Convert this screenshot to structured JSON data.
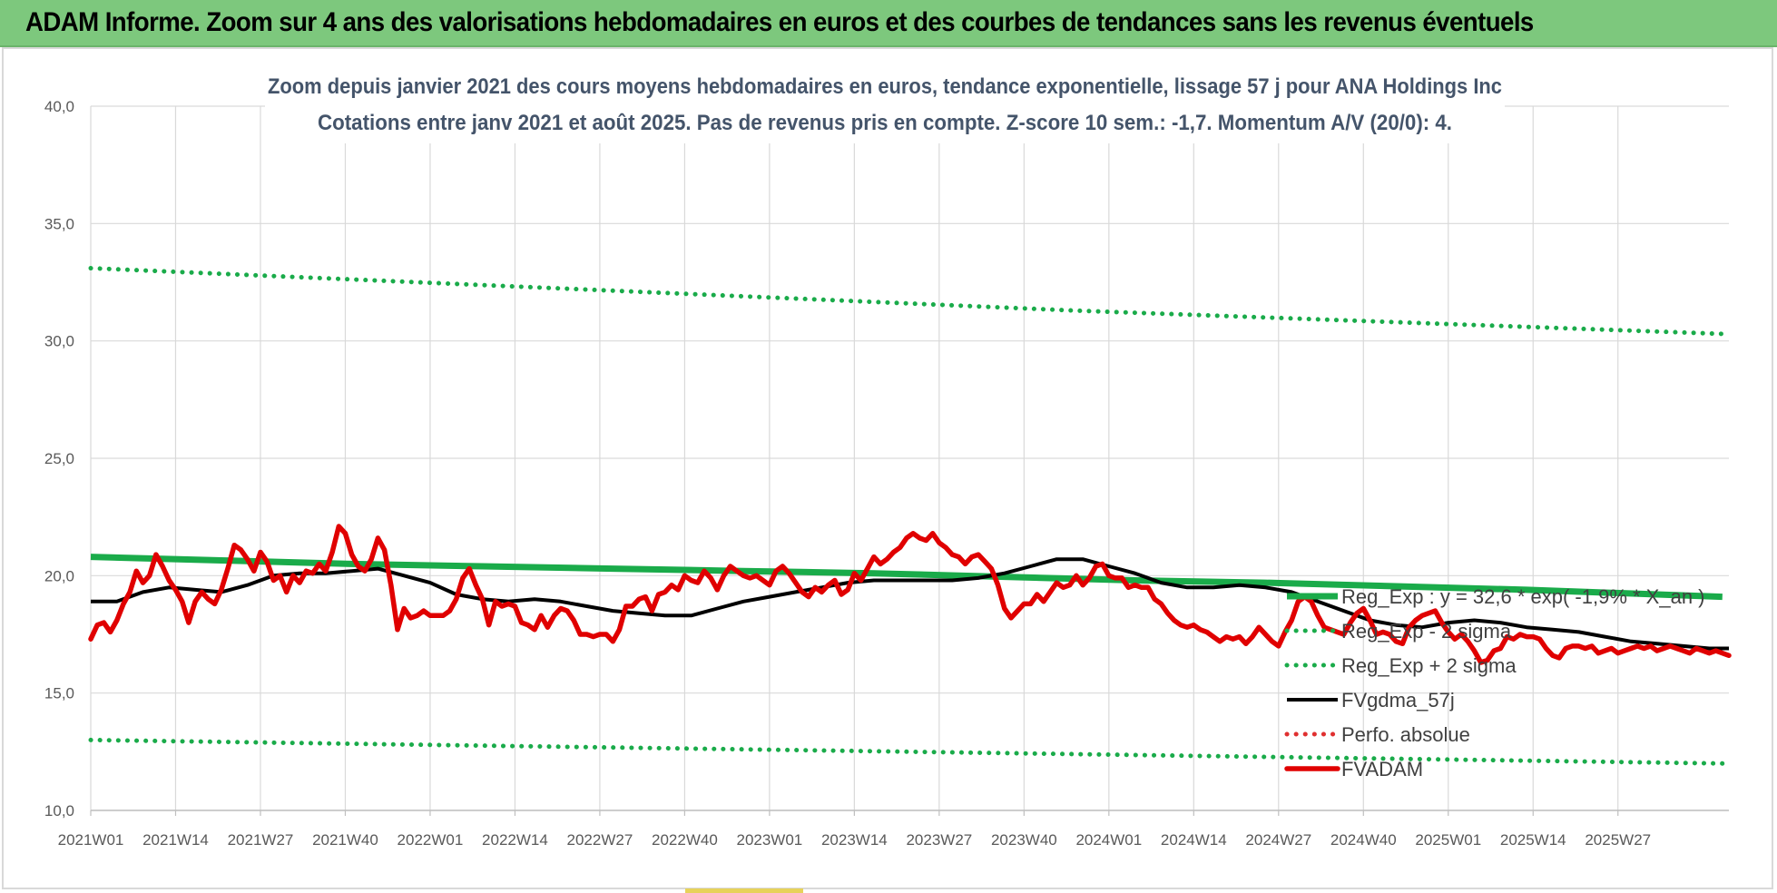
{
  "banner": {
    "title": "ADAM Informe. Zoom sur 4 ans des valorisations hebdomadaires en euros et des courbes de tendances sans les revenus éventuels"
  },
  "chart_data": {
    "type": "line",
    "title_line1": "Zoom depuis janvier 2021 des cours moyens hebdomadaires en euros, tendance exponentielle, lissage 57 j pour ANA Holdings Inc",
    "title_line2": "Cotations entre janv 2021 et août 2025.  Pas de revenus pris en compte. Z-score 10 sem.: -1,7. Momentum A/V (20/0): 4.",
    "ylim": [
      10,
      40
    ],
    "y_ticks": [
      "10,0",
      "15,0",
      "20,0",
      "25,0",
      "30,0",
      "35,0",
      "40,0"
    ],
    "x_tick_labels": [
      "2021W01",
      "2021W14",
      "2021W27",
      "2021W40",
      "2022W01",
      "2022W14",
      "2022W27",
      "2022W40",
      "2023W01",
      "2023W14",
      "2023W27",
      "2023W40",
      "2024W01",
      "2024W14",
      "2024W27",
      "2024W40",
      "2025W01",
      "2025W14",
      "2025W27"
    ],
    "grid": true,
    "legend_position": "right",
    "series": [
      {
        "name": "Reg_Exp : y = 32,6 * exp( -1,9% * X_an )",
        "style": "solid",
        "color": "#1aab4a",
        "x": [
          0,
          20,
          40,
          60,
          80,
          100,
          120,
          140,
          160,
          180,
          200,
          220,
          240,
          250
        ],
        "values": [
          20.8,
          20.65,
          20.5,
          20.4,
          20.3,
          20.2,
          20.1,
          19.95,
          19.8,
          19.7,
          19.55,
          19.4,
          19.2,
          19.1
        ]
      },
      {
        "name": "Reg_Exp - 2 sigma",
        "style": "dotted",
        "color": "#1aab4a",
        "x": [
          0,
          50,
          100,
          150,
          200,
          250
        ],
        "values": [
          13.0,
          12.8,
          12.6,
          12.4,
          12.2,
          12.0
        ]
      },
      {
        "name": "Reg_Exp + 2 sigma",
        "style": "dotted",
        "color": "#1aab4a",
        "x": [
          0,
          50,
          100,
          150,
          200,
          250
        ],
        "values": [
          33.1,
          32.5,
          31.9,
          31.3,
          30.8,
          30.3
        ]
      },
      {
        "name": "FVgdma_57j",
        "style": "solid",
        "color": "#000000",
        "x": [
          0,
          4,
          8,
          12,
          16,
          20,
          24,
          28,
          32,
          36,
          40,
          44,
          48,
          52,
          56,
          60,
          64,
          68,
          72,
          76,
          80,
          84,
          88,
          92,
          96,
          100,
          104,
          108,
          112,
          116,
          120,
          124,
          128,
          132,
          136,
          140,
          144,
          148,
          152,
          156,
          160,
          164,
          168,
          172,
          176,
          180,
          184,
          188,
          192,
          196,
          200,
          204,
          208,
          212,
          216,
          220,
          224,
          228,
          232,
          236,
          240,
          244,
          248,
          251
        ],
        "values": [
          18.9,
          18.9,
          19.3,
          19.5,
          19.4,
          19.3,
          19.6,
          20.0,
          20.1,
          20.1,
          20.2,
          20.3,
          20.0,
          19.7,
          19.2,
          19.0,
          18.9,
          19.0,
          18.9,
          18.7,
          18.5,
          18.4,
          18.3,
          18.3,
          18.6,
          18.9,
          19.1,
          19.3,
          19.5,
          19.7,
          19.8,
          19.8,
          19.8,
          19.8,
          19.9,
          20.1,
          20.4,
          20.7,
          20.7,
          20.4,
          20.1,
          19.7,
          19.5,
          19.5,
          19.6,
          19.5,
          19.3,
          18.9,
          18.5,
          18.1,
          17.9,
          17.8,
          18.0,
          18.1,
          18.0,
          17.8,
          17.7,
          17.6,
          17.4,
          17.2,
          17.1,
          17.0,
          16.9,
          16.9
        ]
      },
      {
        "name": "Perfo. absolue",
        "style": "dotted",
        "color": "#e03030",
        "x": [],
        "values": []
      },
      {
        "name": "FVADAM",
        "style": "solid",
        "color": "#e00000",
        "x": [
          0,
          1,
          2,
          3,
          4,
          5,
          6,
          7,
          8,
          9,
          10,
          11,
          12,
          13,
          14,
          15,
          16,
          17,
          18,
          19,
          20,
          21,
          22,
          23,
          24,
          25,
          26,
          27,
          28,
          29,
          30,
          31,
          32,
          33,
          34,
          35,
          36,
          37,
          38,
          39,
          40,
          41,
          42,
          43,
          44,
          45,
          46,
          47,
          48,
          49,
          50,
          51,
          52,
          53,
          54,
          55,
          56,
          57,
          58,
          59,
          60,
          61,
          62,
          63,
          64,
          65,
          66,
          67,
          68,
          69,
          70,
          71,
          72,
          73,
          74,
          75,
          76,
          77,
          78,
          79,
          80,
          81,
          82,
          83,
          84,
          85,
          86,
          87,
          88,
          89,
          90,
          91,
          92,
          93,
          94,
          95,
          96,
          97,
          98,
          99,
          100,
          101,
          102,
          103,
          104,
          105,
          106,
          107,
          108,
          109,
          110,
          111,
          112,
          113,
          114,
          115,
          116,
          117,
          118,
          119,
          120,
          121,
          122,
          123,
          124,
          125,
          126,
          127,
          128,
          129,
          130,
          131,
          132,
          133,
          134,
          135,
          136,
          137,
          138,
          139,
          140,
          141,
          142,
          143,
          144,
          145,
          146,
          147,
          148,
          149,
          150,
          151,
          152,
          153,
          154,
          155,
          156,
          157,
          158,
          159,
          160,
          161,
          162,
          163,
          164,
          165,
          166,
          167,
          168,
          169,
          170,
          171,
          172,
          173,
          174,
          175,
          176,
          177,
          178,
          179,
          180,
          181,
          182,
          183,
          184,
          185,
          186,
          187,
          188,
          189,
          190,
          191,
          192,
          193,
          194,
          195,
          196,
          197,
          198,
          199,
          200,
          201,
          202,
          203,
          204,
          205,
          206,
          207,
          208,
          209,
          210,
          211,
          212,
          213,
          214,
          215,
          216,
          217,
          218,
          219,
          220,
          221,
          222,
          223,
          224,
          225,
          226,
          227,
          228,
          229,
          230,
          231,
          232,
          233,
          234,
          235,
          236,
          237,
          238,
          239,
          240,
          241,
          242,
          243,
          244,
          245,
          246,
          247,
          248,
          249,
          250,
          251
        ],
        "values": [
          17.3,
          17.9,
          18.0,
          17.6,
          18.1,
          18.8,
          19.3,
          20.2,
          19.7,
          20.0,
          20.9,
          20.4,
          19.8,
          19.4,
          18.9,
          18.0,
          18.9,
          19.3,
          19.0,
          18.8,
          19.4,
          20.3,
          21.3,
          21.1,
          20.7,
          20.2,
          21.0,
          20.6,
          19.8,
          20.0,
          19.3,
          20.0,
          19.7,
          20.2,
          20.1,
          20.5,
          20.2,
          21.0,
          22.1,
          21.8,
          20.9,
          20.4,
          20.2,
          20.7,
          21.6,
          21.1,
          19.6,
          17.7,
          18.6,
          18.2,
          18.3,
          18.5,
          18.3,
          18.3,
          18.3,
          18.5,
          19.0,
          19.9,
          20.3,
          19.6,
          19.0,
          17.9,
          18.9,
          18.7,
          18.8,
          18.7,
          18.0,
          17.9,
          17.7,
          18.3,
          17.8,
          18.3,
          18.6,
          18.5,
          18.1,
          17.5,
          17.5,
          17.4,
          17.5,
          17.5,
          17.2,
          17.7,
          18.7,
          18.7,
          19.0,
          19.1,
          18.5,
          19.2,
          19.3,
          19.6,
          19.4,
          20.0,
          19.8,
          19.7,
          20.2,
          19.9,
          19.4,
          20.0,
          20.4,
          20.2,
          20.0,
          19.9,
          20.0,
          19.8,
          19.6,
          20.2,
          20.4,
          20.1,
          19.7,
          19.3,
          19.1,
          19.5,
          19.3,
          19.6,
          19.8,
          19.2,
          19.4,
          20.1,
          19.8,
          20.3,
          20.8,
          20.5,
          20.7,
          21.0,
          21.2,
          21.6,
          21.8,
          21.6,
          21.5,
          21.8,
          21.4,
          21.2,
          20.9,
          20.8,
          20.5,
          20.8,
          20.9,
          20.6,
          20.3,
          19.6,
          18.6,
          18.2,
          18.5,
          18.8,
          18.8,
          19.2,
          18.9,
          19.3,
          19.7,
          19.5,
          19.6,
          20.0,
          19.6,
          19.9,
          20.4,
          20.5,
          20.0,
          19.9,
          19.9,
          19.5,
          19.6,
          19.5,
          19.5,
          19.0,
          18.8,
          18.4,
          18.1,
          17.9,
          17.8,
          17.9,
          17.7,
          17.6,
          17.4,
          17.2,
          17.4,
          17.3,
          17.4,
          17.1,
          17.4,
          17.8,
          17.5,
          17.2,
          17.0,
          17.6,
          18.1,
          18.9,
          19.1,
          18.9,
          18.3,
          17.8,
          17.7,
          17.6,
          17.5,
          18.0,
          18.4,
          18.6,
          18.1,
          17.5,
          17.6,
          17.5,
          17.2,
          17.1,
          17.8,
          18.1,
          18.3,
          18.4,
          18.5,
          18.0,
          17.6,
          17.3,
          17.5,
          17.2,
          16.8,
          16.3,
          16.4,
          16.8,
          16.9,
          17.4,
          17.3,
          17.5,
          17.4,
          17.4,
          17.3,
          16.9,
          16.6,
          16.5,
          16.9,
          17.0,
          17.0,
          16.9,
          17.0,
          16.7,
          16.8,
          16.9,
          16.7,
          16.8,
          16.9,
          17.0,
          16.9,
          17.0,
          16.8,
          16.9,
          17.0,
          16.9,
          16.8,
          16.7,
          16.9,
          16.8,
          16.7,
          16.8,
          16.7,
          16.6
        ]
      }
    ]
  }
}
